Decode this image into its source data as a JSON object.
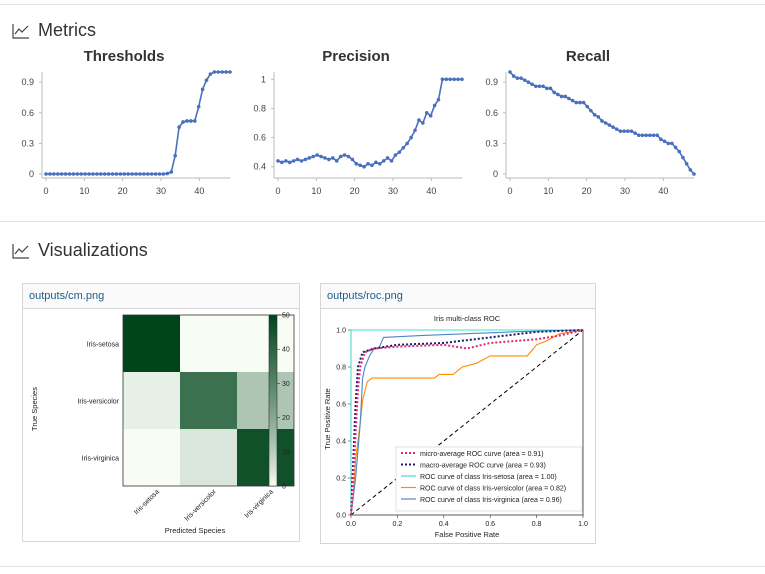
{
  "metrics": {
    "title": "Metrics",
    "charts": [
      {
        "title": "Thresholds",
        "yticks": [
          0,
          0.3,
          0.6,
          0.9
        ],
        "ylim": [
          0,
          1
        ],
        "xticks": [
          0,
          10,
          20,
          30,
          40
        ],
        "xlim": [
          0,
          48
        ],
        "values": [
          0,
          0,
          0,
          0,
          0,
          0,
          0,
          0,
          0,
          0,
          0,
          0,
          0,
          0,
          0,
          0,
          0,
          0,
          0,
          0,
          0,
          0,
          0,
          0,
          0,
          0,
          0,
          0,
          0,
          0,
          0,
          0.005,
          0.02,
          0.18,
          0.46,
          0.51,
          0.52,
          0.52,
          0.52,
          0.66,
          0.83,
          0.92,
          0.98,
          1,
          1,
          1,
          1,
          1
        ]
      },
      {
        "title": "Precision",
        "yticks": [
          0.4,
          0.6,
          0.8,
          1
        ],
        "ylim": [
          0.35,
          1.05
        ],
        "xticks": [
          0,
          10,
          20,
          30,
          40
        ],
        "xlim": [
          0,
          48
        ],
        "values": [
          0.44,
          0.43,
          0.44,
          0.43,
          0.44,
          0.45,
          0.44,
          0.45,
          0.46,
          0.47,
          0.48,
          0.47,
          0.46,
          0.45,
          0.46,
          0.44,
          0.47,
          0.48,
          0.47,
          0.45,
          0.42,
          0.41,
          0.4,
          0.42,
          0.41,
          0.43,
          0.42,
          0.44,
          0.46,
          0.44,
          0.48,
          0.5,
          0.53,
          0.56,
          0.6,
          0.65,
          0.72,
          0.7,
          0.77,
          0.75,
          0.82,
          0.86,
          1,
          1,
          1,
          1,
          1,
          1
        ]
      },
      {
        "title": "Recall",
        "yticks": [
          0,
          0.3,
          0.6,
          0.9
        ],
        "ylim": [
          0,
          1
        ],
        "xticks": [
          0,
          10,
          20,
          30,
          40
        ],
        "xlim": [
          0,
          48
        ],
        "values": [
          1,
          0.96,
          0.94,
          0.94,
          0.92,
          0.9,
          0.88,
          0.86,
          0.86,
          0.86,
          0.84,
          0.84,
          0.8,
          0.78,
          0.76,
          0.76,
          0.74,
          0.72,
          0.7,
          0.7,
          0.7,
          0.66,
          0.62,
          0.58,
          0.56,
          0.52,
          0.5,
          0.48,
          0.46,
          0.44,
          0.42,
          0.42,
          0.42,
          0.42,
          0.4,
          0.38,
          0.38,
          0.38,
          0.38,
          0.38,
          0.38,
          0.34,
          0.32,
          0.3,
          0.3,
          0.26,
          0.22,
          0.16,
          0.1,
          0.04,
          0
        ]
      }
    ]
  },
  "visualizations": {
    "title": "Visualizations",
    "cm_card": {
      "path": "outputs/cm.png",
      "ylabel": "True Species",
      "xlabel": "Predicted Species",
      "rows": [
        "Iris-setosa",
        "Iris-versicolor",
        "Iris-virginica"
      ],
      "cols": [
        "Iris-setosa",
        "Iris-versicolor",
        "Iris-virginica"
      ],
      "matrix": [
        [
          50,
          0,
          0
        ],
        [
          2,
          36,
          12
        ],
        [
          0,
          4,
          46
        ]
      ],
      "colorbar_ticks": [
        0,
        10,
        20,
        30,
        40,
        50
      ]
    },
    "roc_card": {
      "path": "outputs/roc.png",
      "title": "Iris multi-class ROC",
      "xlabel": "False Positive Rate",
      "ylabel": "True Positive Rate",
      "xticks": [
        "0.0",
        "0.2",
        "0.4",
        "0.6",
        "0.8",
        "1.0"
      ],
      "yticks": [
        "0.0",
        "0.2",
        "0.4",
        "0.6",
        "0.8",
        "1.0"
      ],
      "legend": [
        "micro-average ROC curve (area = 0.91)",
        "macro-average ROC curve (area = 0.93)",
        "ROC curve of class Iris-setosa (area = 1.00)",
        "ROC curve of class Iris-versicolor (area = 0.82)",
        "ROC curve of class Iris-virginica (area = 0.96)"
      ],
      "colors": [
        "#e3267a",
        "#1a1a6e",
        "#3fe0d0",
        "#ff8c00",
        "#4f86c6"
      ]
    }
  },
  "colors": {
    "line": "#4a6fbf",
    "divider": "#e3e3e3",
    "link": "#1d5d8c"
  }
}
